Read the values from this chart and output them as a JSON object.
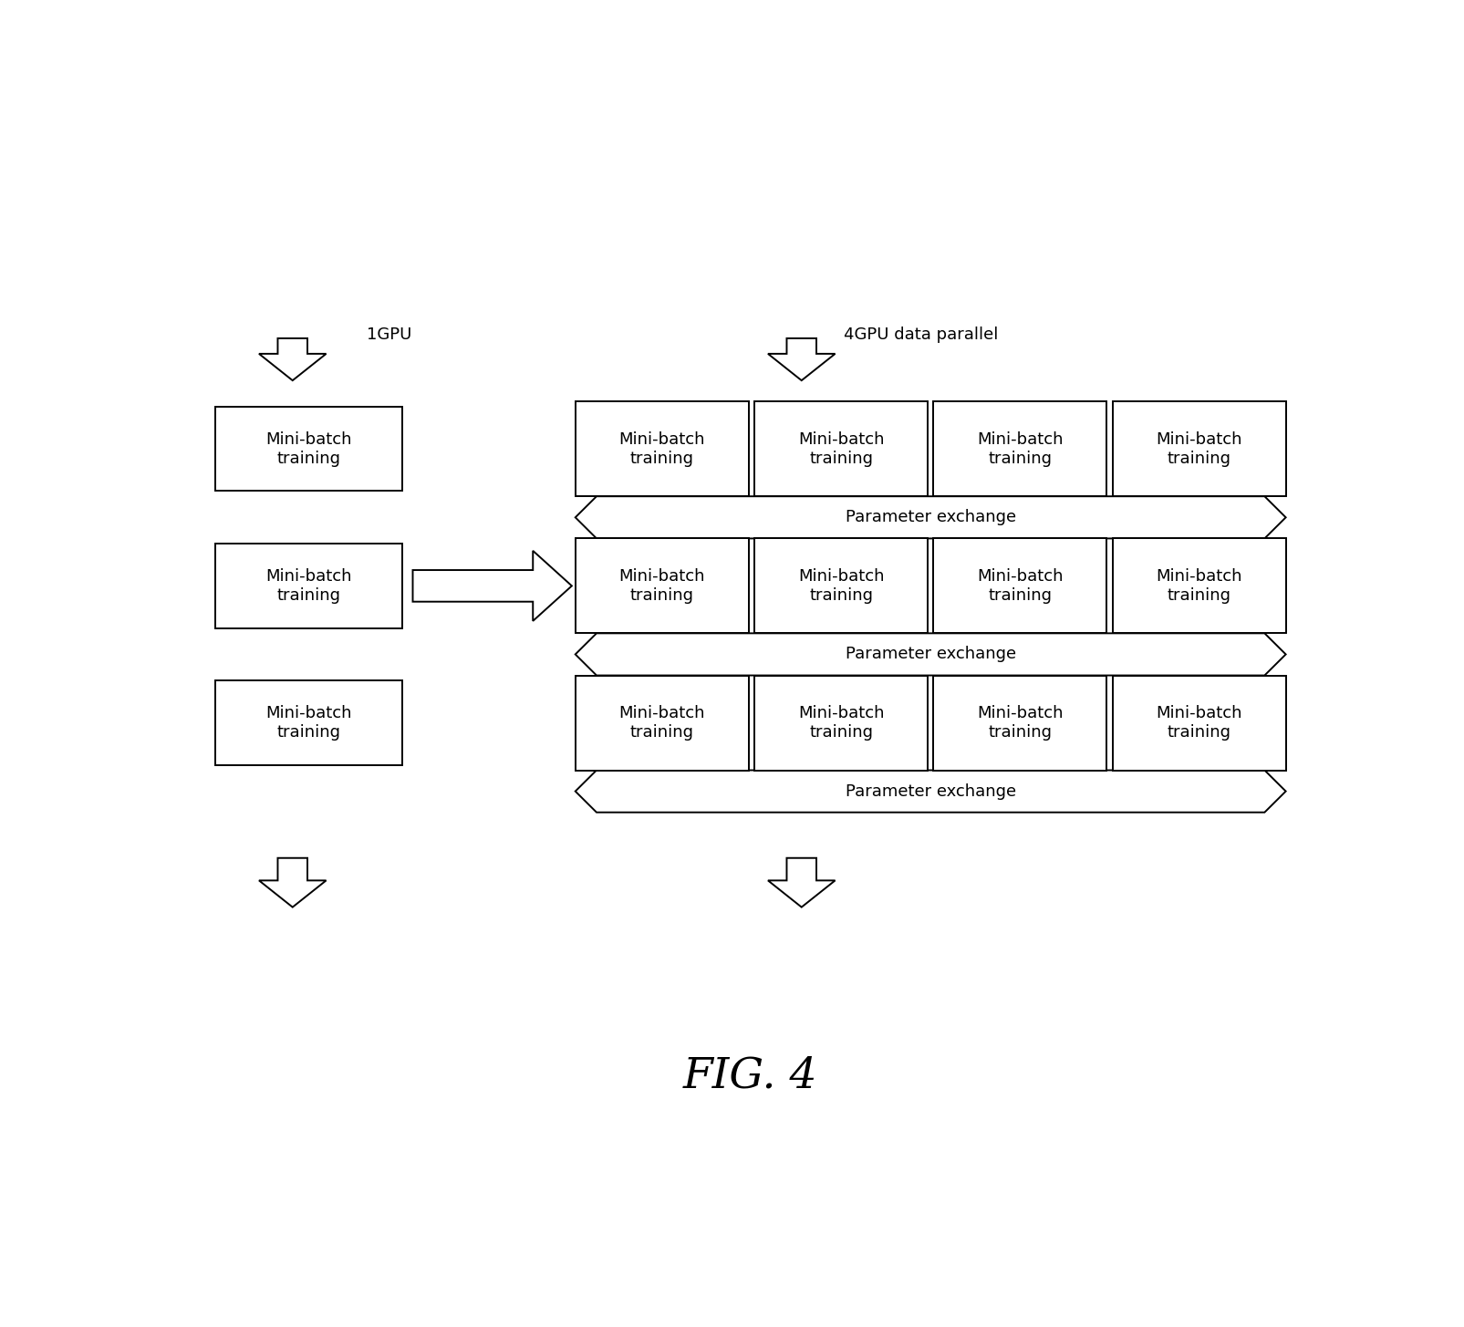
{
  "fig_width": 16.05,
  "fig_height": 14.55,
  "bg_color": "#ffffff",
  "title": "FIG. 4",
  "title_fontsize": 34,
  "label_1gpu": "1GPU",
  "label_4gpu": "4GPU data parallel",
  "mini_batch_text": "Mini-batch\ntraining",
  "param_exchange_text": "Parameter exchange",
  "box_edge_color": "#000000",
  "box_fill_color": "#ffffff",
  "text_color": "#000000",
  "arrow_color": "#000000",
  "font_size_box": 13,
  "font_size_param": 13,
  "font_size_label": 13,
  "lw": 1.4
}
